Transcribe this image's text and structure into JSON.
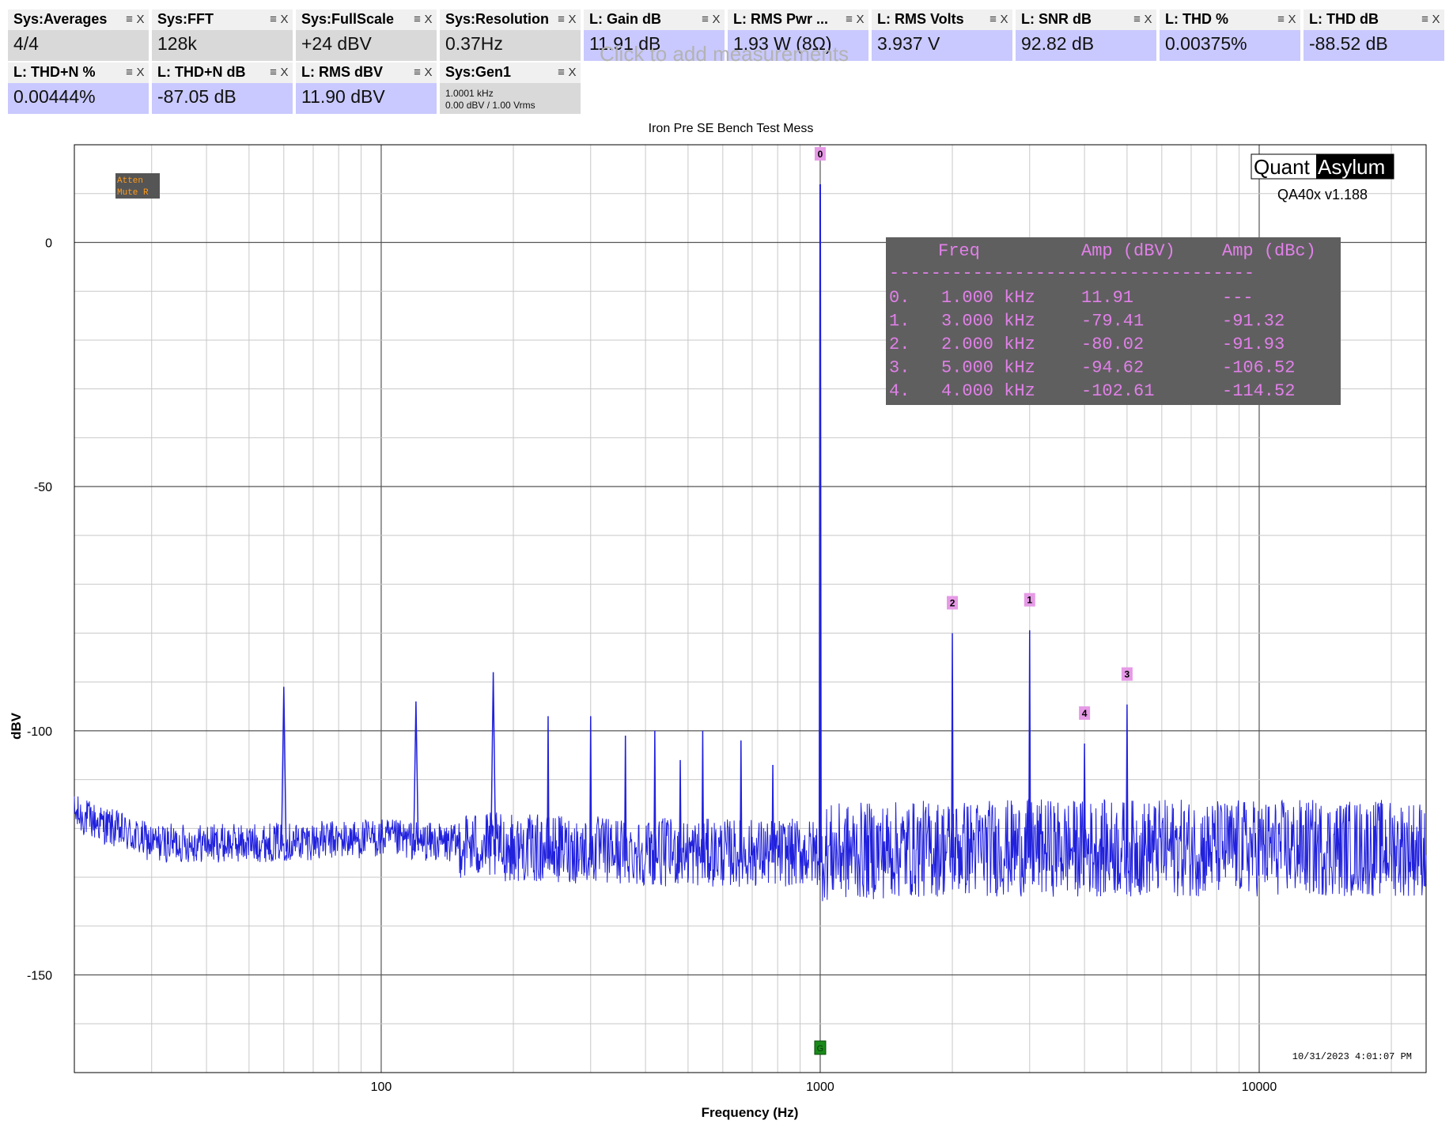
{
  "tiles": [
    {
      "label": "Sys:Averages",
      "value": "4/4",
      "kind": "sys"
    },
    {
      "label": "Sys:FFT",
      "value": "128k",
      "kind": "sys"
    },
    {
      "label": "Sys:FullScale",
      "value": "+24 dBV",
      "kind": "sys"
    },
    {
      "label": "Sys:Resolution",
      "value": "0.37Hz",
      "kind": "sys"
    },
    {
      "label": "L: Gain dB",
      "value": "11.91 dB",
      "kind": "ch"
    },
    {
      "label": "L: RMS Pwr ...",
      "value": "1.93 W (8Ω)",
      "kind": "ch"
    },
    {
      "label": "L: RMS Volts",
      "value": "3.937 V",
      "kind": "ch"
    },
    {
      "label": "L: SNR dB",
      "value": "92.82 dB",
      "kind": "ch"
    },
    {
      "label": "L: THD %",
      "value": "0.00375%",
      "kind": "ch"
    },
    {
      "label": "L: THD dB",
      "value": "-88.52 dB",
      "kind": "ch"
    },
    {
      "label": "L: THD+N %",
      "value": "0.00444%",
      "kind": "ch"
    },
    {
      "label": "L: THD+N dB",
      "value": "-87.05 dB",
      "kind": "ch"
    },
    {
      "label": "L: RMS dBV",
      "value": "11.90 dBV",
      "kind": "ch"
    },
    {
      "label": "Sys:Gen1",
      "value": "",
      "line1": "1.0001 kHz",
      "line2": "0.00 dBV  / 1.00 Vrms",
      "kind": "sys"
    }
  ],
  "tile_icons": {
    "menu": "≡",
    "close": "X"
  },
  "ghost_text": "Click to add measurements",
  "status_badge": {
    "line1": "Atten",
    "line2": "Mute R"
  },
  "brand": {
    "quant": "Quant",
    "asylum": "Asylum",
    "version": "QA40x v1.188"
  },
  "timestamp": "10/31/2023 4:01:07 PM",
  "marker_table": {
    "headers": [
      "Freq",
      "Amp (dBV)",
      "Amp (dBc)"
    ],
    "divider": "-----------------------------------",
    "rows": [
      {
        "idx": "0.",
        "freq": "1.000 kHz",
        "dbv": "11.91",
        "dbc": "---"
      },
      {
        "idx": "1.",
        "freq": "3.000 kHz",
        "dbv": "-79.41",
        "dbc": "-91.32"
      },
      {
        "idx": "2.",
        "freq": "2.000 kHz",
        "dbv": "-80.02",
        "dbc": "-91.93"
      },
      {
        "idx": "3.",
        "freq": "5.000 kHz",
        "dbv": "-94.62",
        "dbc": "-106.52"
      },
      {
        "idx": "4.",
        "freq": "4.000 kHz",
        "dbv": "-102.61",
        "dbc": "-114.52"
      }
    ]
  },
  "chart_data": {
    "type": "line",
    "title": "Iron Pre SE Bench Test Mess",
    "xlabel": "Frequency (Hz)",
    "ylabel": "dBV",
    "xscale": "log",
    "xlim": [
      20,
      24000
    ],
    "ylim": [
      -170,
      20
    ],
    "xticks": [
      100,
      1000,
      10000
    ],
    "xtick_labels": [
      "100",
      "1000",
      "10000"
    ],
    "yticks": [
      0,
      -50,
      -100,
      -150
    ],
    "ytick_labels": [
      "0",
      "-50",
      "-100",
      "-150"
    ],
    "grid": true,
    "series": [
      {
        "color": "#2020dd",
        "noise_floor": [
          [
            20,
            -117
          ],
          [
            30,
            -123
          ],
          [
            50,
            -123
          ],
          [
            100,
            -122
          ],
          [
            200,
            -124
          ],
          [
            500,
            -125
          ],
          [
            1000,
            -125
          ],
          [
            2000,
            -124
          ],
          [
            5000,
            -124
          ],
          [
            10000,
            -124
          ],
          [
            24000,
            -124
          ]
        ],
        "peaks": [
          {
            "freq": 1000,
            "dbv": 11.91
          },
          {
            "freq": 60,
            "dbv": -91
          },
          {
            "freq": 120,
            "dbv": -94
          },
          {
            "freq": 180,
            "dbv": -88
          },
          {
            "freq": 240,
            "dbv": -97
          },
          {
            "freq": 300,
            "dbv": -97
          },
          {
            "freq": 360,
            "dbv": -101
          },
          {
            "freq": 420,
            "dbv": -100
          },
          {
            "freq": 480,
            "dbv": -106
          },
          {
            "freq": 540,
            "dbv": -100
          },
          {
            "freq": 660,
            "dbv": -102
          },
          {
            "freq": 780,
            "dbv": -107
          },
          {
            "freq": 2000,
            "dbv": -80.02
          },
          {
            "freq": 3000,
            "dbv": -79.41
          },
          {
            "freq": 4000,
            "dbv": -102.61
          },
          {
            "freq": 5000,
            "dbv": -94.62
          }
        ]
      }
    ],
    "markers": [
      {
        "label": "0",
        "freq": 1000,
        "dbv": 11.91
      },
      {
        "label": "1",
        "freq": 3000,
        "dbv": -79.41
      },
      {
        "label": "2",
        "freq": 2000,
        "dbv": -80.02
      },
      {
        "label": "3",
        "freq": 5000,
        "dbv": -94.62
      },
      {
        "label": "4",
        "freq": 4000,
        "dbv": -102.61
      }
    ],
    "generator_marker": {
      "label": "G",
      "freq": 1000,
      "color": "#1a8a1a"
    }
  }
}
